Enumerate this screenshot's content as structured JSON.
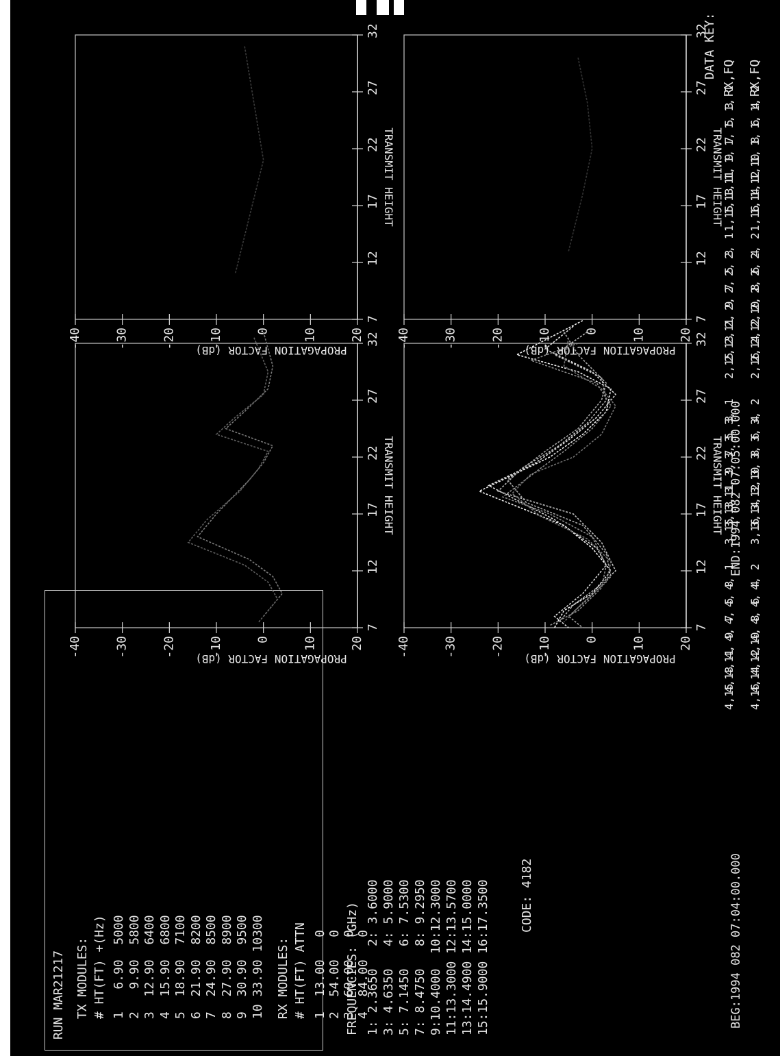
{
  "run": "RUN MAR21217",
  "tx": {
    "heading": "TX MODULES:",
    "columns": "# HT(FT) +(Hz)",
    "rows": [
      "1   6.90  5000",
      "2   9.90  5800",
      "3  12.90  6400",
      "4  15.90  6800",
      "5  18.90  7100",
      "6  21.90  8200",
      "7  24.90  8500",
      "8  27.90  8900",
      "9  30.90  9500",
      "10 33.90 10300"
    ]
  },
  "rx": {
    "heading": "RX MODULES:",
    "columns": "# HT(FT) ATTN",
    "rows": [
      "1  13.00   0",
      "2  54.00   0",
      "3  69.00   0",
      "4  84.00   0"
    ]
  },
  "frequencies": {
    "heading": "FREQUENCIES: (GHz)",
    "rows": [
      "1: 2.3650   2: 3.6000",
      "3: 4.6350   4: 5.9000",
      "5: 7.1450   6: 7.5300",
      "7: 8.4750   8: 9.2950",
      "9:10.4000  10:12.3000",
      "11:13.3000 12:13.5700",
      "13:14.4900 14:15.0000",
      "15:15.9000 16:17.3500"
    ]
  },
  "code": "CODE: 4182",
  "time_beg": "BEG:1994 082 07:04:00.000",
  "time_end": "END:1994 082 07:05:00.000",
  "key": {
    "title": "DATA KEY:",
    "columns": [
      "RX,FQ",
      "RX,FQ"
    ],
    "groups": [
      [
        [
          "1, 1",
          "1, 2"
        ],
        [
          "1, 3",
          "1, 4"
        ],
        [
          "1, 5",
          "1, 6"
        ],
        [
          "1, 7",
          "1, 8"
        ],
        [
          "1, 9",
          "1,10"
        ],
        [
          "1,11",
          "1,12"
        ],
        [
          "1,13",
          "1,14"
        ],
        [
          "1,15",
          "1,16"
        ]
      ],
      [
        [
          "2, 1",
          "2, 2"
        ],
        [
          "2, 3",
          "2, 4"
        ],
        [
          "2, 5",
          "2, 6"
        ],
        [
          "2, 7",
          "2, 8"
        ],
        [
          "2, 9",
          "2,10"
        ],
        [
          "2,11",
          "2,12"
        ],
        [
          "2,13",
          "2,14"
        ],
        [
          "2,15",
          "2,16"
        ]
      ],
      [
        [
          "3, 1",
          "3, 2"
        ],
        [
          "3, 3",
          "3, 4"
        ],
        [
          "3, 5",
          "3, 6"
        ],
        [
          "3, 7",
          "3, 8"
        ],
        [
          "3, 9",
          "3,10"
        ],
        [
          "3,11",
          "3,12"
        ],
        [
          "3,13",
          "3,14"
        ],
        [
          "3,15",
          "3,16"
        ]
      ],
      [
        [
          "4, 1",
          "4, 2"
        ],
        [
          "4, 3",
          "4, 4"
        ],
        [
          "4, 5",
          "4, 6"
        ],
        [
          "4, 7",
          "4, 8"
        ],
        [
          "4, 9",
          "4,10"
        ],
        [
          "4,11",
          "4,12"
        ],
        [
          "4,13",
          "4,14"
        ],
        [
          "4,15",
          "4,16"
        ]
      ]
    ]
  },
  "chart_data": [
    {
      "type": "line",
      "panel": "top-left",
      "xlabel": "PROPAGATION FACTOR (dB)",
      "ylabel": "TRANSMIT HEIGHT",
      "xlim": [
        -40,
        20
      ],
      "ylim": [
        7,
        32
      ],
      "xticks": [
        "-40",
        "-30",
        "-20",
        "-10",
        "0",
        "10",
        "20"
      ],
      "yticks": [
        "7",
        "12",
        "17",
        "22",
        "27",
        "32"
      ],
      "series": [
        {
          "color": "#3a3a3a",
          "points": [
            [
              -4,
              31
            ],
            [
              -2,
              26
            ],
            [
              0,
              21
            ],
            [
              -3,
              16
            ],
            [
              -6,
              11
            ]
          ]
        }
      ]
    },
    {
      "type": "line",
      "panel": "top-right",
      "xlabel": "PROPAGATION FACTOR (dB)",
      "ylabel": "TRANSMIT HEIGHT",
      "xlim": [
        -40,
        20
      ],
      "ylim": [
        7,
        32
      ],
      "xticks": [
        "-40",
        "-30",
        "-20",
        "-10",
        "0",
        "10",
        "20"
      ],
      "yticks": [
        "7",
        "12",
        "17",
        "22",
        "27",
        "32"
      ],
      "series": [
        {
          "color": "#333333",
          "points": [
            [
              -3,
              30
            ],
            [
              -1,
              26
            ],
            [
              0,
              22
            ],
            [
              -2,
              18
            ],
            [
              -5,
              13
            ]
          ]
        }
      ]
    },
    {
      "type": "line",
      "panel": "bottom-left",
      "xlabel": "PROPAGATION FACTOR (dB)",
      "ylabel": "TRANSMIT HEIGHT",
      "xlim": [
        -40,
        20
      ],
      "ylim": [
        7,
        32
      ],
      "xticks": [
        "-40",
        "-30",
        "-20",
        "-10",
        "0",
        "10",
        "20"
      ],
      "yticks": [
        "7",
        "12",
        "17",
        "22",
        "27",
        "32"
      ],
      "series": [
        {
          "color": "#7a7a7a",
          "points": [
            [
              0,
              33
            ],
            [
              2,
              30
            ],
            [
              1,
              28
            ],
            [
              -4,
              26
            ],
            [
              -8,
              24.5
            ],
            [
              2,
              23
            ],
            [
              0,
              21.5
            ],
            [
              -3,
              20
            ],
            [
              -10,
              17
            ],
            [
              -14,
              15
            ],
            [
              -3,
              13
            ],
            [
              2,
              11.5
            ],
            [
              4,
              10
            ],
            [
              0,
              8
            ]
          ]
        },
        {
          "color": "#5e5e5e",
          "points": [
            [
              -2,
              32.5
            ],
            [
              1,
              29.5
            ],
            [
              0,
              27.5
            ],
            [
              -6,
              25.5
            ],
            [
              -10,
              24
            ],
            [
              1,
              22.5
            ],
            [
              -1,
              21
            ],
            [
              -5,
              19
            ],
            [
              -12,
              16.5
            ],
            [
              -16,
              14.5
            ],
            [
              -4,
              12.5
            ],
            [
              1,
              11
            ],
            [
              3,
              9.5
            ],
            [
              -1,
              7.5
            ]
          ]
        }
      ]
    },
    {
      "type": "line",
      "panel": "bottom-right",
      "xlabel": "PROPAGATION FACTOR (dB)",
      "ylabel": "TRANSMIT HEIGHT",
      "xlim": [
        -40,
        20
      ],
      "ylim": [
        7,
        32
      ],
      "xticks": [
        "-40",
        "-30",
        "-20",
        "-10",
        "0",
        "10",
        "20"
      ],
      "yticks": [
        "7",
        "12",
        "17",
        "22",
        "27",
        "32"
      ],
      "series": [
        {
          "color": "#f2f2f2",
          "points": [
            [
              -2,
              34
            ],
            [
              -16,
              31
            ],
            [
              -3,
              29.5
            ],
            [
              4,
              28
            ],
            [
              3,
              26
            ],
            [
              -2,
              24
            ],
            [
              -9,
              22
            ],
            [
              -24,
              19
            ],
            [
              -6,
              16
            ],
            [
              0,
              14
            ],
            [
              4,
              12
            ],
            [
              0,
              10
            ],
            [
              -6,
              8.5
            ],
            [
              -8,
              7
            ]
          ]
        },
        {
          "color": "#dcdcdc",
          "points": [
            [
              -4,
              33.5
            ],
            [
              -10,
              31.5
            ],
            [
              0,
              29.5
            ],
            [
              5,
              27.5
            ],
            [
              1,
              25.5
            ],
            [
              -5,
              23.5
            ],
            [
              -12,
              21.5
            ],
            [
              -22,
              19.5
            ],
            [
              -8,
              16.5
            ],
            [
              1,
              14
            ],
            [
              3,
              12.5
            ],
            [
              -2,
              10
            ],
            [
              -8,
              8
            ],
            [
              -5,
              7
            ]
          ]
        },
        {
          "color": "#bdbdbd",
          "points": [
            [
              -1,
              33
            ],
            [
              -8,
              31
            ],
            [
              2,
              29
            ],
            [
              3,
              27
            ],
            [
              -1,
              25
            ],
            [
              -7,
              23
            ],
            [
              -15,
              21
            ],
            [
              -20,
              19
            ],
            [
              -4,
              17
            ],
            [
              2,
              14.5
            ],
            [
              5,
              12
            ],
            [
              1,
              10.5
            ],
            [
              -4,
              9
            ],
            [
              -7,
              7.5
            ]
          ]
        },
        {
          "color": "#a5a5a5",
          "points": [
            [
              -6,
              33
            ],
            [
              -3,
              31
            ],
            [
              3,
              28.5
            ],
            [
              2,
              27
            ],
            [
              -3,
              24.5
            ],
            [
              -10,
              22.5
            ],
            [
              -18,
              20
            ],
            [
              -14,
              18
            ],
            [
              -2,
              16
            ],
            [
              3,
              13.5
            ],
            [
              4,
              11.5
            ],
            [
              -1,
              9.5
            ],
            [
              -5,
              8
            ],
            [
              -2,
              7
            ]
          ]
        },
        {
          "color": "#8c8c8c",
          "points": [
            [
              -3,
              32
            ],
            [
              -13,
              30.5
            ],
            [
              1,
              28.5
            ],
            [
              4,
              26.5
            ],
            [
              0,
              24.5
            ],
            [
              -6,
              22.5
            ],
            [
              -11,
              21
            ],
            [
              -19,
              18.5
            ],
            [
              -9,
              17
            ],
            [
              0,
              15
            ],
            [
              3,
              12.5
            ],
            [
              2,
              10.5
            ],
            [
              -3,
              8.5
            ],
            [
              -9,
              7.2
            ]
          ]
        },
        {
          "color": "#727272",
          "points": [
            [
              -5,
              32.5
            ],
            [
              -6,
              30
            ],
            [
              2,
              28
            ],
            [
              5,
              26.5
            ],
            [
              2,
              24
            ],
            [
              -4,
              22
            ],
            [
              -13,
              20.5
            ],
            [
              -17,
              18.8
            ],
            [
              -11,
              16.8
            ],
            [
              -1,
              14.8
            ],
            [
              4,
              12.8
            ],
            [
              3,
              11
            ],
            [
              -2,
              9.2
            ],
            [
              -6,
              7.5
            ]
          ]
        }
      ]
    }
  ]
}
